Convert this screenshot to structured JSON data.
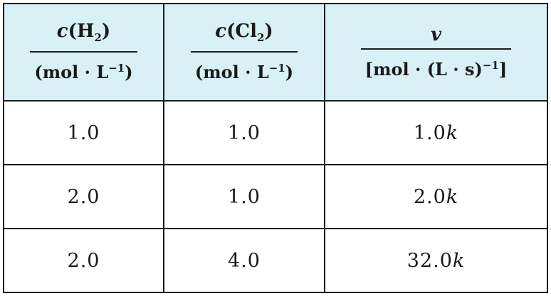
{
  "table": {
    "headers": [
      {
        "numerator_var": "c",
        "numerator_rest": "(H",
        "numerator_sub": "2",
        "numerator_close": ")",
        "unit_open": "(mol · L",
        "unit_sup": "−1",
        "unit_close": ")"
      },
      {
        "numerator_var": "c",
        "numerator_rest": "(Cl",
        "numerator_sub": "2",
        "numerator_close": ")",
        "unit_open": "(mol · L",
        "unit_sup": "−1",
        "unit_close": ")"
      },
      {
        "numerator_var": "v",
        "unit_open": "[mol · (L · s)",
        "unit_sup": "−1",
        "unit_close": "]"
      }
    ],
    "rows": [
      {
        "h2": "1.0",
        "cl2": "1.0",
        "v_num": "1.0",
        "v_k": "k"
      },
      {
        "h2": "2.0",
        "cl2": "1.0",
        "v_num": "2.0",
        "v_k": "k"
      },
      {
        "h2": "2.0",
        "cl2": "4.0",
        "v_num": "32.0",
        "v_k": "k"
      }
    ]
  },
  "colors": {
    "header_bg": "#d8f0f6",
    "border": "#1a1a1a"
  }
}
